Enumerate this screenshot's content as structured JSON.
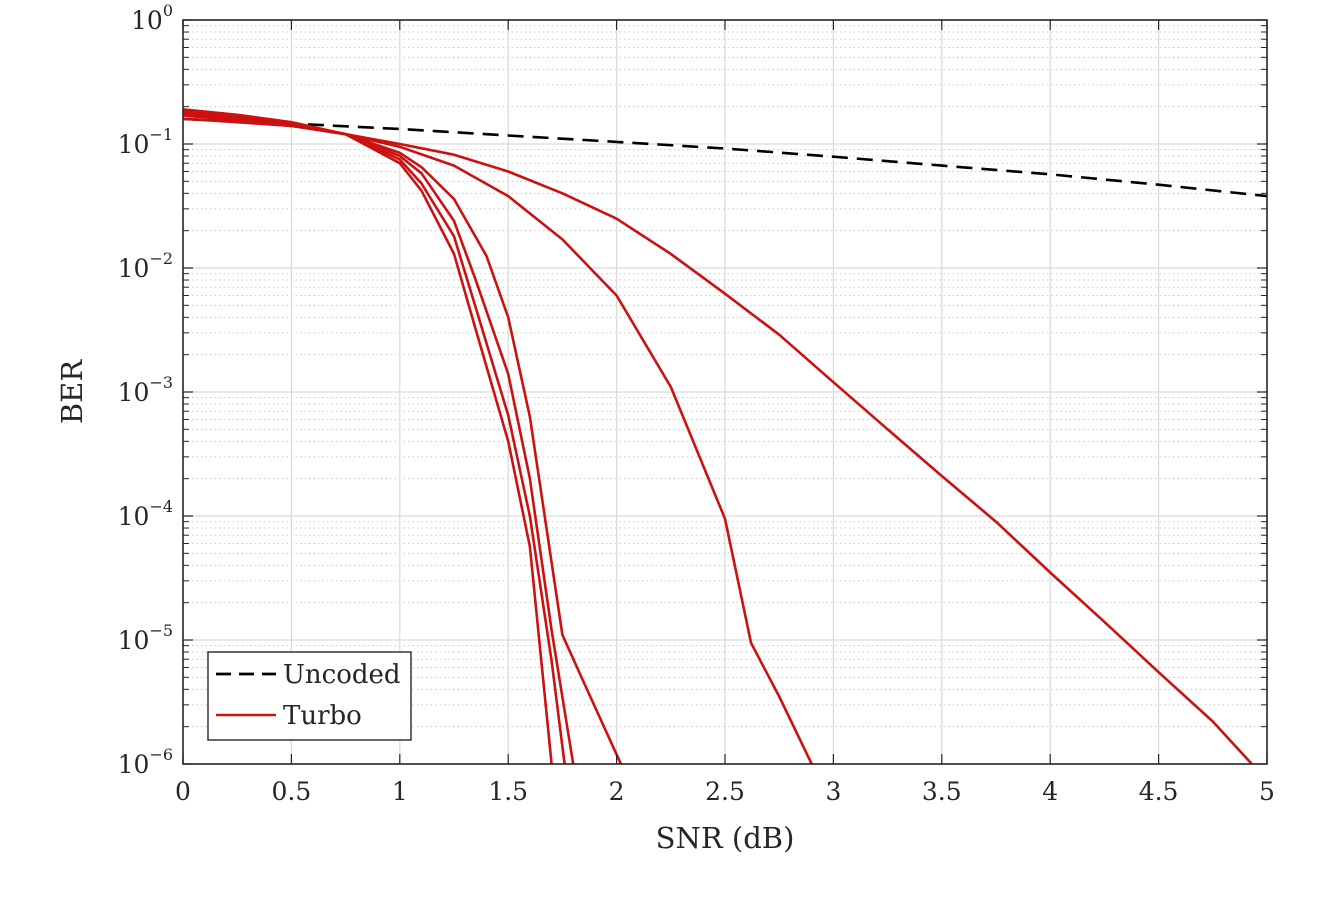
{
  "chart_data": {
    "type": "line",
    "title": "",
    "xlabel": "SNR (dB)",
    "ylabel": "BER",
    "xlim": [
      0,
      5
    ],
    "ylim": [
      1e-06,
      1
    ],
    "yscale": "log",
    "grid": true,
    "minor_grid": true,
    "legend_position": "bottom-left",
    "x_ticks": [
      0,
      0.5,
      1,
      1.5,
      2,
      2.5,
      3,
      3.5,
      4,
      4.5,
      5
    ],
    "x_tick_labels": [
      "0",
      "0.5",
      "1",
      "1.5",
      "2",
      "2.5",
      "3",
      "3.5",
      "4",
      "4.5",
      "5"
    ],
    "y_ticks": [
      {
        "value": 1,
        "base": "10",
        "exp": "0"
      },
      {
        "value": 0.1,
        "base": "10",
        "exp": "−1"
      },
      {
        "value": 0.01,
        "base": "10",
        "exp": "−2"
      },
      {
        "value": 0.001,
        "base": "10",
        "exp": "−3"
      },
      {
        "value": 0.0001,
        "base": "10",
        "exp": "−4"
      },
      {
        "value": 1e-05,
        "base": "10",
        "exp": "−5"
      },
      {
        "value": 1e-06,
        "base": "10",
        "exp": "−6"
      }
    ],
    "legend": {
      "uncoded": "Uncoded",
      "turbo": "Turbo"
    },
    "colors": {
      "uncoded": "#000000",
      "turbo": "#cc1111",
      "grid": "#d9d9d9",
      "axis": "#262626"
    },
    "series": [
      {
        "style": "uncoded",
        "x": [
          0,
          0.5,
          1,
          1.5,
          2,
          2.5,
          3,
          3.5,
          4,
          4.5,
          5
        ],
        "y": [
          0.159,
          0.146,
          0.132,
          0.117,
          0.104,
          0.092,
          0.079,
          0.067,
          0.057,
          0.047,
          0.038
        ]
      },
      {
        "style": "turbo",
        "x": [
          0,
          0.25,
          0.5,
          0.75,
          1,
          1.25,
          1.5,
          1.75,
          2,
          2.25,
          2.5,
          2.75,
          3,
          3.25,
          3.5,
          3.75,
          4,
          4.25,
          4.5,
          4.75,
          4.93
        ],
        "y": [
          0.16,
          0.15,
          0.14,
          0.12,
          0.1,
          0.082,
          0.06,
          0.04,
          0.025,
          0.013,
          0.0062,
          0.0029,
          0.0012,
          0.0005,
          0.00021,
          9e-05,
          3.5e-05,
          1.4e-05,
          5.5e-06,
          2.2e-06,
          1e-06
        ]
      },
      {
        "style": "turbo",
        "x": [
          0,
          0.25,
          0.5,
          0.75,
          1,
          1.25,
          1.5,
          1.75,
          2,
          2.25,
          2.5,
          2.62,
          2.75,
          2.9
        ],
        "y": [
          0.17,
          0.155,
          0.14,
          0.12,
          0.095,
          0.067,
          0.038,
          0.017,
          0.006,
          0.0011,
          9.5e-05,
          9.5e-06,
          3.5e-06,
          1e-06
        ]
      },
      {
        "style": "turbo",
        "x": [
          0,
          0.25,
          0.5,
          0.75,
          1,
          1.1,
          1.25,
          1.4,
          1.5,
          1.6,
          1.75,
          1.85,
          2.02
        ],
        "y": [
          0.175,
          0.16,
          0.145,
          0.12,
          0.085,
          0.065,
          0.036,
          0.0125,
          0.004,
          0.00063,
          1.1e-05,
          4.5e-06,
          1e-06
        ]
      },
      {
        "style": "turbo",
        "x": [
          0,
          0.25,
          0.5,
          0.75,
          1,
          1.1,
          1.25,
          1.35,
          1.5,
          1.6,
          1.7,
          1.8
        ],
        "y": [
          0.18,
          0.165,
          0.145,
          0.12,
          0.08,
          0.058,
          0.024,
          0.008,
          0.0014,
          0.0002,
          1.2e-05,
          1e-06
        ]
      },
      {
        "style": "turbo",
        "x": [
          0,
          0.25,
          0.5,
          0.75,
          1,
          1.1,
          1.25,
          1.35,
          1.5,
          1.6,
          1.7,
          1.76
        ],
        "y": [
          0.185,
          0.17,
          0.148,
          0.12,
          0.075,
          0.048,
          0.018,
          0.0048,
          0.00065,
          9.95e-05,
          6.8e-06,
          1e-06
        ]
      },
      {
        "style": "turbo",
        "x": [
          0,
          0.25,
          0.5,
          0.75,
          1,
          1.1,
          1.25,
          1.35,
          1.5,
          1.6,
          1.7
        ],
        "y": [
          0.19,
          0.172,
          0.15,
          0.12,
          0.07,
          0.042,
          0.013,
          0.0032,
          0.0004,
          5.65e-05,
          1e-06
        ]
      }
    ]
  }
}
